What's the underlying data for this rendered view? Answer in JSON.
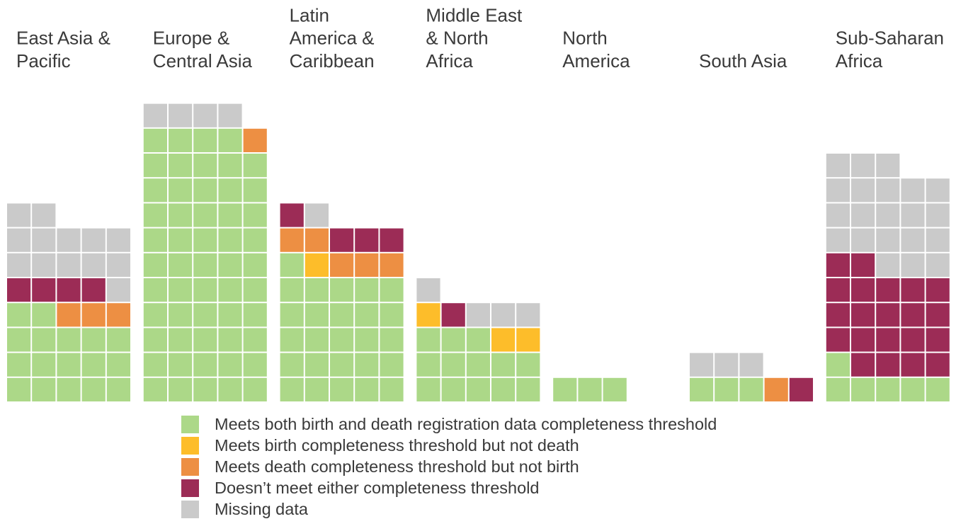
{
  "chart_data": {
    "type": "waffle",
    "categories_legend": [
      {
        "key": "both",
        "label": "Meets both birth and death registration data completeness threshold",
        "color": "#acd888"
      },
      {
        "key": "birth",
        "label": "Meets birth completeness threshold but not death",
        "color": "#fdbd2a"
      },
      {
        "key": "death",
        "label": "Meets death completeness threshold but not birth",
        "color": "#ed8f43"
      },
      {
        "key": "neither",
        "label": "Doesn’t meet either completeness threshold",
        "color": "#9c2c56"
      },
      {
        "key": "missing",
        "label": "Missing data",
        "color": "#cacaca"
      }
    ],
    "regions": [
      {
        "name": "East Asia & Pacific",
        "label_lines": [
          "East Asia &",
          "Pacific"
        ],
        "counts": {
          "both": 17,
          "birth": 0,
          "death": 3,
          "neither": 4,
          "missing": 13
        },
        "cells": [
          "both",
          "both",
          "both",
          "both",
          "both",
          "both",
          "both",
          "both",
          "both",
          "both",
          "both",
          "both",
          "both",
          "both",
          "both",
          "both",
          "both",
          "death",
          "death",
          "death",
          "neither",
          "neither",
          "neither",
          "neither",
          "missing",
          "missing",
          "missing",
          "missing",
          "missing",
          "missing",
          "missing",
          "missing",
          "missing",
          "missing",
          "missing",
          "missing",
          "missing"
        ]
      },
      {
        "name": "Europe & Central Asia",
        "label_lines": [
          "Europe &",
          "Central Asia"
        ],
        "counts": {
          "both": 54,
          "birth": 0,
          "death": 1,
          "neither": 0,
          "missing": 4
        },
        "cells": [
          "both",
          "both",
          "both",
          "both",
          "both",
          "both",
          "both",
          "both",
          "both",
          "both",
          "both",
          "both",
          "both",
          "both",
          "both",
          "both",
          "both",
          "both",
          "both",
          "both",
          "both",
          "both",
          "both",
          "both",
          "both",
          "both",
          "both",
          "both",
          "both",
          "both",
          "both",
          "both",
          "both",
          "both",
          "both",
          "both",
          "both",
          "both",
          "both",
          "both",
          "both",
          "both",
          "both",
          "both",
          "both",
          "both",
          "both",
          "both",
          "both",
          "both",
          "both",
          "both",
          "both",
          "both",
          "death",
          "missing",
          "missing",
          "missing",
          "missing"
        ]
      },
      {
        "name": "Latin America & Caribbean",
        "label_lines": [
          "Latin",
          "America &",
          "Caribbean"
        ],
        "counts": {
          "both": 26,
          "birth": 1,
          "death": 5,
          "neither": 4,
          "missing": 1
        },
        "cells": [
          "both",
          "both",
          "both",
          "both",
          "both",
          "both",
          "both",
          "both",
          "both",
          "both",
          "both",
          "both",
          "both",
          "both",
          "both",
          "both",
          "both",
          "both",
          "both",
          "both",
          "both",
          "both",
          "both",
          "both",
          "both",
          "both",
          "birth",
          "death",
          "death",
          "death",
          "death",
          "death",
          "neither",
          "neither",
          "neither",
          "neither",
          "missing"
        ]
      },
      {
        "name": "Middle East & North Africa",
        "label_lines": [
          "Middle East",
          "& North",
          "Africa"
        ],
        "counts": {
          "both": 13,
          "birth": 3,
          "death": 0,
          "neither": 1,
          "missing": 4
        },
        "cells": [
          "both",
          "both",
          "both",
          "both",
          "both",
          "both",
          "both",
          "both",
          "both",
          "both",
          "both",
          "both",
          "both",
          "birth",
          "birth",
          "birth",
          "neither",
          "missing",
          "missing",
          "missing",
          "missing"
        ]
      },
      {
        "name": "North America",
        "label_lines": [
          "North",
          "America"
        ],
        "counts": {
          "both": 3,
          "birth": 0,
          "death": 0,
          "neither": 0,
          "missing": 0
        },
        "cells": [
          "both",
          "both",
          "both"
        ]
      },
      {
        "name": "South Asia",
        "label_lines": [
          "South Asia"
        ],
        "counts": {
          "both": 3,
          "birth": 0,
          "death": 1,
          "neither": 1,
          "missing": 3
        },
        "cells": [
          "both",
          "both",
          "both",
          "death",
          "neither",
          "missing",
          "missing",
          "missing"
        ]
      },
      {
        "name": "Sub-Saharan Africa",
        "label_lines": [
          "Sub-Saharan",
          "Africa"
        ],
        "counts": {
          "both": 6,
          "birth": 0,
          "death": 0,
          "neither": 21,
          "missing": 21
        },
        "cells": [
          "both",
          "both",
          "both",
          "both",
          "both",
          "both",
          "neither",
          "neither",
          "neither",
          "neither",
          "neither",
          "neither",
          "neither",
          "neither",
          "neither",
          "neither",
          "neither",
          "neither",
          "neither",
          "neither",
          "neither",
          "neither",
          "neither",
          "neither",
          "neither",
          "neither",
          "neither",
          "missing",
          "missing",
          "missing",
          "missing",
          "missing",
          "missing",
          "missing",
          "missing",
          "missing",
          "missing",
          "missing",
          "missing",
          "missing",
          "missing",
          "missing",
          "missing",
          "missing",
          "missing",
          "missing",
          "missing",
          "missing"
        ]
      }
    ]
  }
}
